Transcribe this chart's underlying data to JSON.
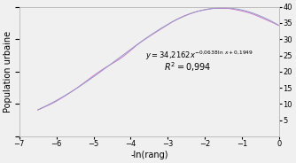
{
  "xlim": [
    -7,
    0
  ],
  "ylim": [
    0,
    40
  ],
  "xlabel": "-ln(rang)",
  "ylabel": "Population urbaine",
  "xticks": [
    -7,
    -6,
    -5,
    -4,
    -3,
    -2,
    -1,
    0
  ],
  "yticks_right": [
    5,
    10,
    15,
    20,
    25,
    30,
    35,
    40
  ],
  "data_color": "#c878c8",
  "fit_color": "#9898c8",
  "background_color": "#f0f0f0",
  "a": 34.2162,
  "b": -0.0638,
  "c": 0.1949,
  "eq_x": -3.6,
  "eq_y": 23.0,
  "r2_x": -3.1,
  "r2_y": 19.5
}
